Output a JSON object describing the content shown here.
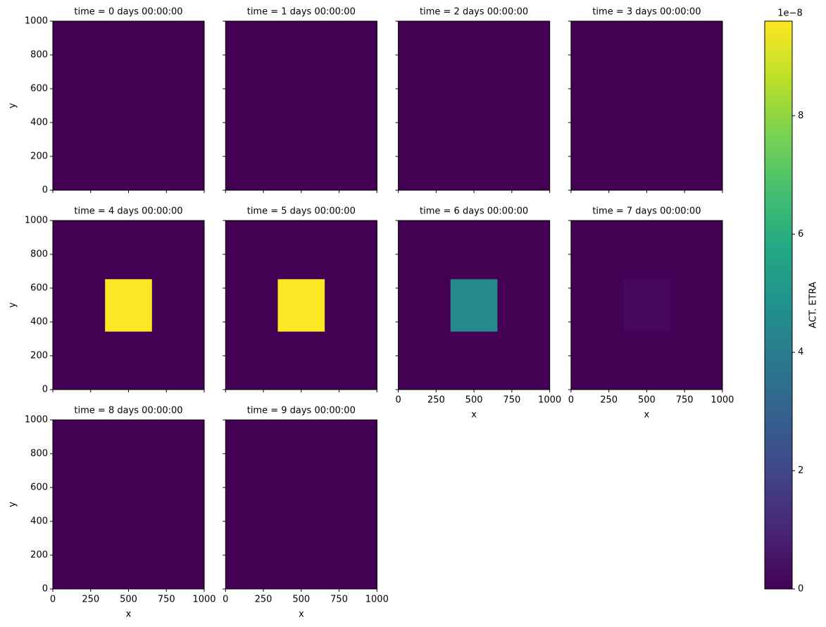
{
  "chart_data": {
    "type": "heatmap-facets",
    "ncols": 4,
    "x_edges": [
      0,
      345,
      655,
      1000
    ],
    "y_edges": [
      0,
      345,
      655,
      1000
    ],
    "xlim": [
      0,
      1000
    ],
    "ylim": [
      0,
      1000
    ],
    "xticks": [
      0,
      250,
      500,
      750,
      1000
    ],
    "yticks": [
      0,
      200,
      400,
      600,
      800,
      1000
    ],
    "xlabel": "x",
    "ylabel": "y",
    "panels": [
      {
        "title": "time = 0 days 00:00:00",
        "values": [
          [
            0,
            0,
            0
          ],
          [
            0,
            0,
            0
          ],
          [
            0,
            0,
            0
          ]
        ]
      },
      {
        "title": "time = 1 days 00:00:00",
        "values": [
          [
            0,
            0,
            0
          ],
          [
            0,
            0,
            0
          ],
          [
            0,
            0,
            0
          ]
        ]
      },
      {
        "title": "time = 2 days 00:00:00",
        "values": [
          [
            0,
            0,
            0
          ],
          [
            0,
            0,
            0
          ],
          [
            0,
            0,
            0
          ]
        ]
      },
      {
        "title": "time = 3 days 00:00:00",
        "values": [
          [
            0,
            0,
            0
          ],
          [
            0,
            0,
            0
          ],
          [
            0,
            0,
            0
          ]
        ]
      },
      {
        "title": "time = 4 days 00:00:00",
        "values": [
          [
            0,
            0,
            0
          ],
          [
            0,
            9.6,
            0
          ],
          [
            0,
            0,
            0
          ]
        ]
      },
      {
        "title": "time = 5 days 00:00:00",
        "values": [
          [
            0,
            0,
            0
          ],
          [
            0,
            9.6,
            0
          ],
          [
            0,
            0,
            0
          ]
        ]
      },
      {
        "title": "time = 6 days 00:00:00",
        "values": [
          [
            0,
            0,
            0
          ],
          [
            0,
            4.5,
            0
          ],
          [
            0,
            0,
            0
          ]
        ]
      },
      {
        "title": "time = 7 days 00:00:00",
        "values": [
          [
            0,
            0,
            0
          ],
          [
            0,
            0.2,
            0
          ],
          [
            0,
            0,
            0
          ]
        ]
      },
      {
        "title": "time = 8 days 00:00:00",
        "values": [
          [
            0,
            0,
            0
          ],
          [
            0,
            0,
            0
          ],
          [
            0,
            0,
            0
          ]
        ]
      },
      {
        "title": "time = 9 days 00:00:00",
        "values": [
          [
            0,
            0,
            0
          ],
          [
            0,
            0,
            0
          ],
          [
            0,
            0,
            0
          ]
        ]
      }
    ],
    "colorbar": {
      "label": "ACT. ETRA",
      "offset_label": "1e−8",
      "colormap": "viridis",
      "lim": [
        0,
        9.6
      ],
      "ticks": [
        0,
        2,
        4,
        6,
        8
      ]
    }
  }
}
